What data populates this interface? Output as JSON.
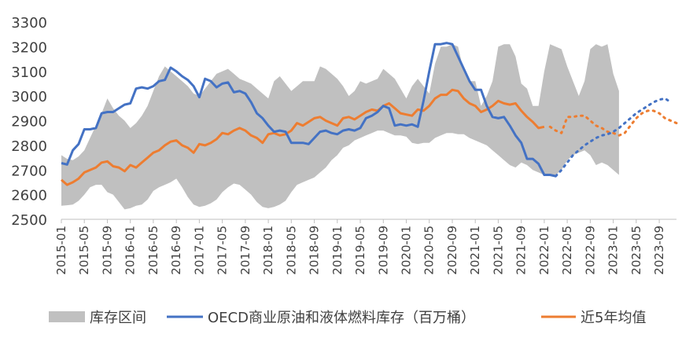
{
  "chart_data": {
    "type": "line",
    "ylim": [
      2500,
      3300
    ],
    "y_ticks": [
      "2500",
      "2600",
      "2700",
      "2800",
      "2900",
      "3000",
      "3100",
      "3200",
      "3300"
    ],
    "x_tick_labels": [
      "2015-01",
      "2015-05",
      "2015-09",
      "2016-01",
      "2016-05",
      "2016-09",
      "2017-01",
      "2017-05",
      "2017-09",
      "2018-01",
      "2018-05",
      "2018-09",
      "2019-01",
      "2019-05",
      "2019-09",
      "2020-01",
      "2020-05",
      "2020-09",
      "2021-01",
      "2021-05",
      "2021-09",
      "2022-01",
      "2022-05",
      "2022-09",
      "2023-01",
      "2023-05",
      "2023-09"
    ],
    "grid": false,
    "legend_position": "bottom",
    "legend": {
      "band_label": "库存区间",
      "actual_label": "OECD商业原油和液体燃料库存（百万桶）",
      "avg_label": "近5年均值"
    },
    "colors": {
      "band": "#c0c0c0",
      "actual": "#4472c4",
      "avg": "#ed7d31"
    },
    "band": {
      "max": [
        2760,
        2745,
        2740,
        2755,
        2780,
        2830,
        2880,
        2930,
        2990,
        2950,
        2920,
        2900,
        2870,
        2890,
        2920,
        2960,
        3020,
        3080,
        3120,
        3100,
        3080,
        3060,
        3040,
        3010,
        3000,
        3030,
        3060,
        3090,
        3100,
        3110,
        3090,
        3070,
        3060,
        3050,
        3030,
        3010,
        2990,
        3060,
        3080,
        3050,
        3020,
        3040,
        3060,
        3060,
        3060,
        3120,
        3110,
        3090,
        3070,
        3040,
        3000,
        3020,
        3060,
        3050,
        3060,
        3070,
        3110,
        3090,
        3070,
        3030,
        2990,
        3040,
        3070,
        3040,
        3010,
        3130,
        3200,
        3200,
        3210,
        3200,
        3100,
        3060,
        3060,
        2960,
        3000,
        3060,
        3200,
        3210,
        3210,
        3160,
        3050,
        3030,
        2960,
        2960,
        3100,
        3210,
        3200,
        3190,
        3120,
        3060,
        3000,
        3060,
        3190,
        3210,
        3200,
        3210,
        3090,
        3020
      ],
      "min": [
        2555,
        2557,
        2560,
        2575,
        2600,
        2630,
        2640,
        2640,
        2610,
        2600,
        2570,
        2540,
        2545,
        2555,
        2560,
        2580,
        2615,
        2630,
        2640,
        2650,
        2665,
        2630,
        2590,
        2560,
        2550,
        2555,
        2565,
        2580,
        2610,
        2630,
        2645,
        2640,
        2620,
        2600,
        2570,
        2550,
        2545,
        2550,
        2560,
        2575,
        2610,
        2640,
        2650,
        2660,
        2670,
        2690,
        2710,
        2740,
        2760,
        2790,
        2800,
        2820,
        2830,
        2840,
        2850,
        2860,
        2860,
        2850,
        2840,
        2840,
        2835,
        2810,
        2805,
        2810,
        2810,
        2830,
        2840,
        2850,
        2850,
        2845,
        2845,
        2830,
        2820,
        2810,
        2800,
        2780,
        2760,
        2740,
        2720,
        2710,
        2730,
        2720,
        2700,
        2690,
        2680,
        2680,
        2680,
        2700,
        2740,
        2760,
        2770,
        2780,
        2760,
        2720,
        2730,
        2720,
        2700,
        2680
      ]
    },
    "actual": [
      2728,
      2722,
      2780,
      2805,
      2865,
      2865,
      2870,
      2930,
      2935,
      2935,
      2950,
      2965,
      2970,
      3030,
      3035,
      3030,
      3040,
      3060,
      3065,
      3115,
      3100,
      3080,
      3065,
      3040,
      2995,
      3070,
      3060,
      3035,
      3050,
      3055,
      3015,
      3020,
      3010,
      2975,
      2930,
      2910,
      2880,
      2855,
      2860,
      2855,
      2810,
      2810,
      2810,
      2805,
      2830,
      2855,
      2860,
      2850,
      2845,
      2860,
      2865,
      2860,
      2870,
      2910,
      2920,
      2935,
      2960,
      2950,
      2880,
      2885,
      2880,
      2885,
      2875,
      2980,
      3100,
      3210,
      3210,
      3215,
      3210,
      3160,
      3110,
      3060,
      3025,
      3025,
      2960,
      2915,
      2910,
      2915,
      2880,
      2840,
      2810,
      2745,
      2745,
      2725,
      2680,
      2680,
      2675
    ],
    "actual_forecast": [
      2675,
      2700,
      2730,
      2760,
      2780,
      2800,
      2815,
      2830,
      2840,
      2845,
      2855,
      2870,
      2890,
      2910,
      2930,
      2945,
      2960,
      2975,
      2985,
      2990,
      2975
    ],
    "avg": [
      2660,
      2640,
      2650,
      2665,
      2690,
      2700,
      2710,
      2730,
      2735,
      2715,
      2710,
      2695,
      2720,
      2710,
      2730,
      2750,
      2770,
      2780,
      2800,
      2815,
      2820,
      2800,
      2790,
      2770,
      2805,
      2800,
      2810,
      2825,
      2850,
      2845,
      2860,
      2870,
      2860,
      2840,
      2830,
      2810,
      2845,
      2850,
      2840,
      2845,
      2860,
      2890,
      2880,
      2895,
      2910,
      2915,
      2900,
      2890,
      2880,
      2910,
      2915,
      2905,
      2920,
      2935,
      2945,
      2940,
      2960,
      2970,
      2950,
      2930,
      2925,
      2920,
      2945,
      2940,
      2960,
      2990,
      3005,
      3005,
      3025,
      3020,
      2990,
      2970,
      2960,
      2935,
      2945,
      2960,
      2980,
      2970,
      2965,
      2970,
      2940,
      2915,
      2895,
      2870,
      2875
    ],
    "avg_forecast": [
      2875,
      2860,
      2850,
      2915,
      2915,
      2920,
      2920,
      2900,
      2880,
      2870,
      2855,
      2850,
      2840,
      2850,
      2880,
      2910,
      2930,
      2940,
      2940,
      2930,
      2910,
      2900,
      2890
    ]
  }
}
